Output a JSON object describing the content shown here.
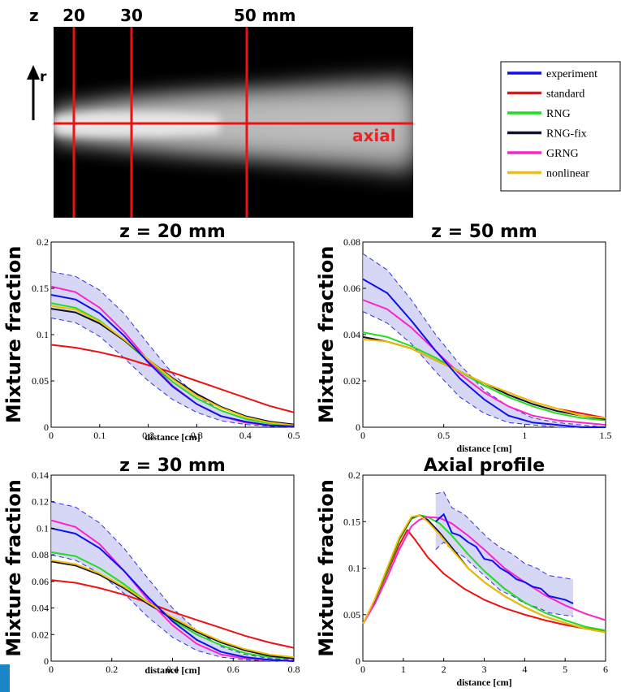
{
  "image_panel": {
    "z_prefix": "z",
    "z_labels": [
      "20",
      "30",
      "50 mm"
    ],
    "r_label": "r",
    "axial_label": "axial"
  },
  "legend": {
    "entries": [
      {
        "name": "experiment",
        "color": "#1010ee"
      },
      {
        "name": "standard",
        "color": "#ee1111"
      },
      {
        "name": "RNG",
        "color": "#22dd22"
      },
      {
        "name": "RNG-fix",
        "color": "#101030"
      },
      {
        "name": "GRNG",
        "color": "#ff22cc"
      },
      {
        "name": "nonlinear",
        "color": "#f0c000"
      }
    ]
  },
  "chart_data": [
    {
      "type": "line",
      "title": "z = 20 mm",
      "xlabel": "distance [cm]",
      "ylabel": "Mixture fraction",
      "xlim": [
        0,
        0.5
      ],
      "ylim": [
        0,
        0.2
      ],
      "xticks": [
        "0",
        "0.1",
        "0.2",
        "0.3",
        "0.4",
        "0.5"
      ],
      "yticks": [
        "0",
        "0.05",
        "0.1",
        "0.15",
        "0.2"
      ],
      "band_upper": {
        "x": [
          0,
          0.05,
          0.1,
          0.15,
          0.2,
          0.25,
          0.3,
          0.35,
          0.4,
          0.45,
          0.5
        ],
        "y": [
          0.168,
          0.163,
          0.148,
          0.123,
          0.09,
          0.058,
          0.034,
          0.018,
          0.009,
          0.004,
          0.002
        ]
      },
      "band_lower": {
        "x": [
          0,
          0.05,
          0.1,
          0.15,
          0.2,
          0.25,
          0.3,
          0.35,
          0.4,
          0.45,
          0.5
        ],
        "y": [
          0.118,
          0.113,
          0.098,
          0.075,
          0.05,
          0.03,
          0.016,
          0.007,
          0.003,
          0.001,
          0
        ]
      },
      "series": [
        {
          "name": "experiment",
          "x": [
            0,
            0.05,
            0.1,
            0.15,
            0.2,
            0.25,
            0.3,
            0.35,
            0.4,
            0.45,
            0.5
          ],
          "y": [
            0.143,
            0.138,
            0.123,
            0.099,
            0.07,
            0.044,
            0.025,
            0.012,
            0.006,
            0.002,
            0.001
          ]
        },
        {
          "name": "standard",
          "x": [
            0,
            0.05,
            0.1,
            0.15,
            0.2,
            0.25,
            0.3,
            0.35,
            0.4,
            0.45,
            0.5
          ],
          "y": [
            0.089,
            0.086,
            0.081,
            0.075,
            0.067,
            0.059,
            0.05,
            0.041,
            0.032,
            0.023,
            0.016
          ]
        },
        {
          "name": "RNG",
          "x": [
            0,
            0.05,
            0.1,
            0.15,
            0.2,
            0.25,
            0.3,
            0.35,
            0.4,
            0.45,
            0.5
          ],
          "y": [
            0.134,
            0.129,
            0.115,
            0.094,
            0.071,
            0.049,
            0.031,
            0.018,
            0.009,
            0.004,
            0.002
          ]
        },
        {
          "name": "RNG-fix",
          "x": [
            0,
            0.05,
            0.1,
            0.15,
            0.2,
            0.25,
            0.3,
            0.35,
            0.4,
            0.45,
            0.5
          ],
          "y": [
            0.128,
            0.124,
            0.112,
            0.094,
            0.073,
            0.053,
            0.036,
            0.022,
            0.012,
            0.006,
            0.003
          ]
        },
        {
          "name": "GRNG",
          "x": [
            0,
            0.05,
            0.1,
            0.15,
            0.2,
            0.25,
            0.3,
            0.35,
            0.4,
            0.45,
            0.5
          ],
          "y": [
            0.152,
            0.146,
            0.129,
            0.103,
            0.072,
            0.045,
            0.025,
            0.012,
            0.005,
            0.002,
            0.001
          ]
        },
        {
          "name": "nonlinear",
          "x": [
            0,
            0.05,
            0.1,
            0.15,
            0.2,
            0.25,
            0.3,
            0.35,
            0.4,
            0.45,
            0.5
          ],
          "y": [
            0.131,
            0.127,
            0.114,
            0.095,
            0.073,
            0.052,
            0.034,
            0.021,
            0.011,
            0.005,
            0.002
          ]
        }
      ]
    },
    {
      "type": "line",
      "title": "z = 50 mm",
      "xlabel": "distance [cm]",
      "ylabel": "Mixture fraction",
      "xlim": [
        0,
        1.5
      ],
      "ylim": [
        0,
        0.08
      ],
      "xticks": [
        "0",
        "0.5",
        "1",
        "1.5"
      ],
      "yticks": [
        "0",
        "0.02",
        "0.04",
        "0.06",
        "0.08"
      ],
      "band_upper": {
        "x": [
          0,
          0.15,
          0.3,
          0.45,
          0.6,
          0.75,
          0.9,
          1.05,
          1.2,
          1.35,
          1.5
        ],
        "y": [
          0.075,
          0.068,
          0.055,
          0.04,
          0.027,
          0.016,
          0.009,
          0.004,
          0.002,
          0.001,
          0
        ]
      },
      "band_lower": {
        "x": [
          0,
          0.15,
          0.3,
          0.45,
          0.6,
          0.75,
          0.9,
          1.05,
          1.2,
          1.35,
          1.5
        ],
        "y": [
          0.05,
          0.045,
          0.036,
          0.024,
          0.013,
          0.006,
          0.002,
          0.001,
          0,
          0,
          0
        ]
      },
      "series": [
        {
          "name": "experiment",
          "x": [
            0,
            0.15,
            0.3,
            0.45,
            0.6,
            0.75,
            0.9,
            1.05,
            1.2,
            1.35,
            1.5
          ],
          "y": [
            0.064,
            0.058,
            0.046,
            0.033,
            0.021,
            0.012,
            0.005,
            0.002,
            0.001,
            0,
            0
          ]
        },
        {
          "name": "standard",
          "x": [
            0,
            0.15,
            0.3,
            0.45,
            0.6,
            0.75,
            0.9,
            1.05,
            1.2,
            1.35,
            1.5
          ],
          "y": [
            0.039,
            0.037,
            0.034,
            0.029,
            0.024,
            0.019,
            0.015,
            0.011,
            0.008,
            0.006,
            0.004
          ]
        },
        {
          "name": "RNG",
          "x": [
            0,
            0.15,
            0.3,
            0.45,
            0.6,
            0.75,
            0.9,
            1.05,
            1.2,
            1.35,
            1.5
          ],
          "y": [
            0.041,
            0.039,
            0.035,
            0.03,
            0.024,
            0.018,
            0.013,
            0.009,
            0.006,
            0.004,
            0.003
          ]
        },
        {
          "name": "RNG-fix",
          "x": [
            0,
            0.15,
            0.3,
            0.45,
            0.6,
            0.75,
            0.9,
            1.05,
            1.2,
            1.35,
            1.5
          ],
          "y": [
            0.039,
            0.037,
            0.034,
            0.029,
            0.024,
            0.019,
            0.014,
            0.01,
            0.007,
            0.005,
            0.0035
          ]
        },
        {
          "name": "GRNG",
          "x": [
            0,
            0.15,
            0.3,
            0.45,
            0.6,
            0.75,
            0.9,
            1.05,
            1.2,
            1.35,
            1.5
          ],
          "y": [
            0.055,
            0.051,
            0.043,
            0.033,
            0.023,
            0.015,
            0.009,
            0.005,
            0.003,
            0.002,
            0.001
          ]
        },
        {
          "name": "nonlinear",
          "x": [
            0,
            0.15,
            0.3,
            0.45,
            0.6,
            0.75,
            0.9,
            1.05,
            1.2,
            1.35,
            1.5
          ],
          "y": [
            0.038,
            0.037,
            0.034,
            0.029,
            0.024,
            0.019,
            0.015,
            0.011,
            0.008,
            0.005,
            0.004
          ]
        }
      ]
    },
    {
      "type": "line",
      "title": "z = 30 mm",
      "xlabel": "distance [cm]",
      "ylabel": "Mixture fraction",
      "xlim": [
        0,
        0.8
      ],
      "ylim": [
        0,
        0.14
      ],
      "xticks": [
        "0",
        "0.2",
        "0.4",
        "0.6",
        "0.8"
      ],
      "yticks": [
        "0",
        "0.02",
        "0.04",
        "0.06",
        "0.08",
        "0.1",
        "0.12",
        "0.14"
      ],
      "band_upper": {
        "x": [
          0,
          0.08,
          0.16,
          0.24,
          0.32,
          0.4,
          0.48,
          0.56,
          0.64,
          0.72,
          0.8
        ],
        "y": [
          0.12,
          0.116,
          0.104,
          0.085,
          0.062,
          0.04,
          0.023,
          0.011,
          0.005,
          0.002,
          0.001
        ]
      },
      "band_lower": {
        "x": [
          0,
          0.08,
          0.16,
          0.24,
          0.32,
          0.4,
          0.48,
          0.56,
          0.64,
          0.72,
          0.8
        ],
        "y": [
          0.08,
          0.076,
          0.066,
          0.051,
          0.033,
          0.018,
          0.008,
          0.003,
          0.001,
          0,
          0
        ]
      },
      "series": [
        {
          "name": "experiment",
          "x": [
            0,
            0.08,
            0.16,
            0.24,
            0.32,
            0.4,
            0.48,
            0.56,
            0.64,
            0.72,
            0.8
          ],
          "y": [
            0.1,
            0.096,
            0.085,
            0.068,
            0.048,
            0.03,
            0.016,
            0.007,
            0.003,
            0.001,
            0
          ]
        },
        {
          "name": "standard",
          "x": [
            0,
            0.08,
            0.16,
            0.24,
            0.32,
            0.4,
            0.48,
            0.56,
            0.64,
            0.72,
            0.8
          ],
          "y": [
            0.061,
            0.059,
            0.055,
            0.05,
            0.044,
            0.037,
            0.031,
            0.025,
            0.019,
            0.014,
            0.01
          ]
        },
        {
          "name": "RNG",
          "x": [
            0,
            0.08,
            0.16,
            0.24,
            0.32,
            0.4,
            0.48,
            0.56,
            0.64,
            0.72,
            0.8
          ],
          "y": [
            0.082,
            0.079,
            0.07,
            0.058,
            0.044,
            0.031,
            0.02,
            0.012,
            0.006,
            0.003,
            0.002
          ]
        },
        {
          "name": "RNG-fix",
          "x": [
            0,
            0.08,
            0.16,
            0.24,
            0.32,
            0.4,
            0.48,
            0.56,
            0.64,
            0.72,
            0.8
          ],
          "y": [
            0.075,
            0.072,
            0.065,
            0.055,
            0.043,
            0.032,
            0.022,
            0.014,
            0.008,
            0.004,
            0.002
          ]
        },
        {
          "name": "GRNG",
          "x": [
            0,
            0.08,
            0.16,
            0.24,
            0.32,
            0.4,
            0.48,
            0.56,
            0.64,
            0.72,
            0.8
          ],
          "y": [
            0.106,
            0.101,
            0.088,
            0.068,
            0.046,
            0.027,
            0.013,
            0.005,
            0.002,
            0.001,
            0
          ]
        },
        {
          "name": "nonlinear",
          "x": [
            0,
            0.08,
            0.16,
            0.24,
            0.32,
            0.4,
            0.48,
            0.56,
            0.64,
            0.72,
            0.8
          ],
          "y": [
            0.076,
            0.073,
            0.066,
            0.056,
            0.044,
            0.033,
            0.023,
            0.015,
            0.009,
            0.005,
            0.003
          ]
        }
      ]
    },
    {
      "type": "line",
      "title": "Axial profile",
      "xlabel": "distance [cm]",
      "ylabel": "Mixture fraction",
      "xlim": [
        0,
        6
      ],
      "ylim": [
        0,
        0.2
      ],
      "xticks": [
        "0",
        "1",
        "2",
        "3",
        "4",
        "5",
        "6"
      ],
      "yticks": [
        "0",
        "0.05",
        "0.1",
        "0.15",
        "0.2"
      ],
      "band_upper": {
        "x": [
          1.8,
          2.0,
          2.2,
          2.5,
          2.8,
          3.1,
          3.4,
          3.7,
          4.0,
          4.3,
          4.6,
          4.9,
          5.2
        ],
        "y": [
          0.18,
          0.182,
          0.165,
          0.158,
          0.145,
          0.132,
          0.122,
          0.115,
          0.105,
          0.1,
          0.092,
          0.09,
          0.088
        ]
      },
      "band_lower": {
        "x": [
          1.8,
          2.0,
          2.2,
          2.5,
          2.8,
          3.1,
          3.4,
          3.7,
          4.0,
          4.3,
          4.6,
          4.9,
          5.2
        ],
        "y": [
          0.12,
          0.128,
          0.12,
          0.112,
          0.1,
          0.088,
          0.076,
          0.07,
          0.062,
          0.058,
          0.052,
          0.05,
          0.048
        ]
      },
      "series": [
        {
          "name": "experiment",
          "x": [
            1.8,
            2.0,
            2.2,
            2.4,
            2.6,
            2.8,
            3.0,
            3.2,
            3.4,
            3.6,
            3.8,
            4.0,
            4.2,
            4.4,
            4.6,
            4.8,
            5.0,
            5.2
          ],
          "y": [
            0.15,
            0.158,
            0.138,
            0.135,
            0.128,
            0.123,
            0.11,
            0.108,
            0.1,
            0.095,
            0.088,
            0.085,
            0.08,
            0.078,
            0.07,
            0.068,
            0.066,
            0.062
          ]
        },
        {
          "name": "standard",
          "x": [
            0,
            0.3,
            0.6,
            0.9,
            1.1,
            1.3,
            1.6,
            2.0,
            2.5,
            3.0,
            3.5,
            4.0,
            4.5,
            5.0,
            5.5,
            6.0
          ],
          "y": [
            0.04,
            0.065,
            0.095,
            0.125,
            0.141,
            0.13,
            0.112,
            0.094,
            0.078,
            0.066,
            0.057,
            0.05,
            0.044,
            0.039,
            0.035,
            0.032
          ]
        },
        {
          "name": "RNG",
          "x": [
            0,
            0.3,
            0.6,
            0.9,
            1.2,
            1.4,
            1.6,
            1.9,
            2.2,
            2.6,
            3.0,
            3.5,
            4.0,
            4.5,
            5.0,
            5.5,
            6.0
          ],
          "y": [
            0.04,
            0.065,
            0.097,
            0.13,
            0.153,
            0.157,
            0.155,
            0.148,
            0.135,
            0.115,
            0.097,
            0.078,
            0.063,
            0.052,
            0.044,
            0.037,
            0.033
          ]
        },
        {
          "name": "RNG-fix",
          "x": [
            0,
            0.3,
            0.6,
            0.9,
            1.2,
            1.4,
            1.6,
            1.9,
            2.2,
            2.6,
            3.0,
            3.5,
            4.0,
            4.5,
            5.0,
            5.5,
            6.0
          ],
          "y": [
            0.04,
            0.066,
            0.099,
            0.132,
            0.154,
            0.157,
            0.152,
            0.138,
            0.122,
            0.1,
            0.085,
            0.07,
            0.058,
            0.048,
            0.041,
            0.035,
            0.031
          ]
        },
        {
          "name": "GRNG",
          "x": [
            0,
            0.3,
            0.6,
            0.9,
            1.2,
            1.4,
            1.6,
            1.9,
            2.2,
            2.6,
            3.0,
            3.5,
            4.0,
            4.5,
            5.0,
            5.5,
            6.0
          ],
          "y": [
            0.04,
            0.062,
            0.09,
            0.12,
            0.145,
            0.152,
            0.155,
            0.154,
            0.148,
            0.135,
            0.12,
            0.1,
            0.085,
            0.071,
            0.06,
            0.051,
            0.044
          ]
        },
        {
          "name": "nonlinear",
          "x": [
            0,
            0.3,
            0.6,
            0.9,
            1.2,
            1.4,
            1.6,
            1.9,
            2.2,
            2.6,
            3.0,
            3.5,
            4.0,
            4.5,
            5.0,
            5.5,
            6.0
          ],
          "y": [
            0.04,
            0.067,
            0.1,
            0.133,
            0.155,
            0.157,
            0.15,
            0.136,
            0.12,
            0.1,
            0.085,
            0.07,
            0.058,
            0.048,
            0.041,
            0.035,
            0.031
          ]
        }
      ]
    }
  ]
}
